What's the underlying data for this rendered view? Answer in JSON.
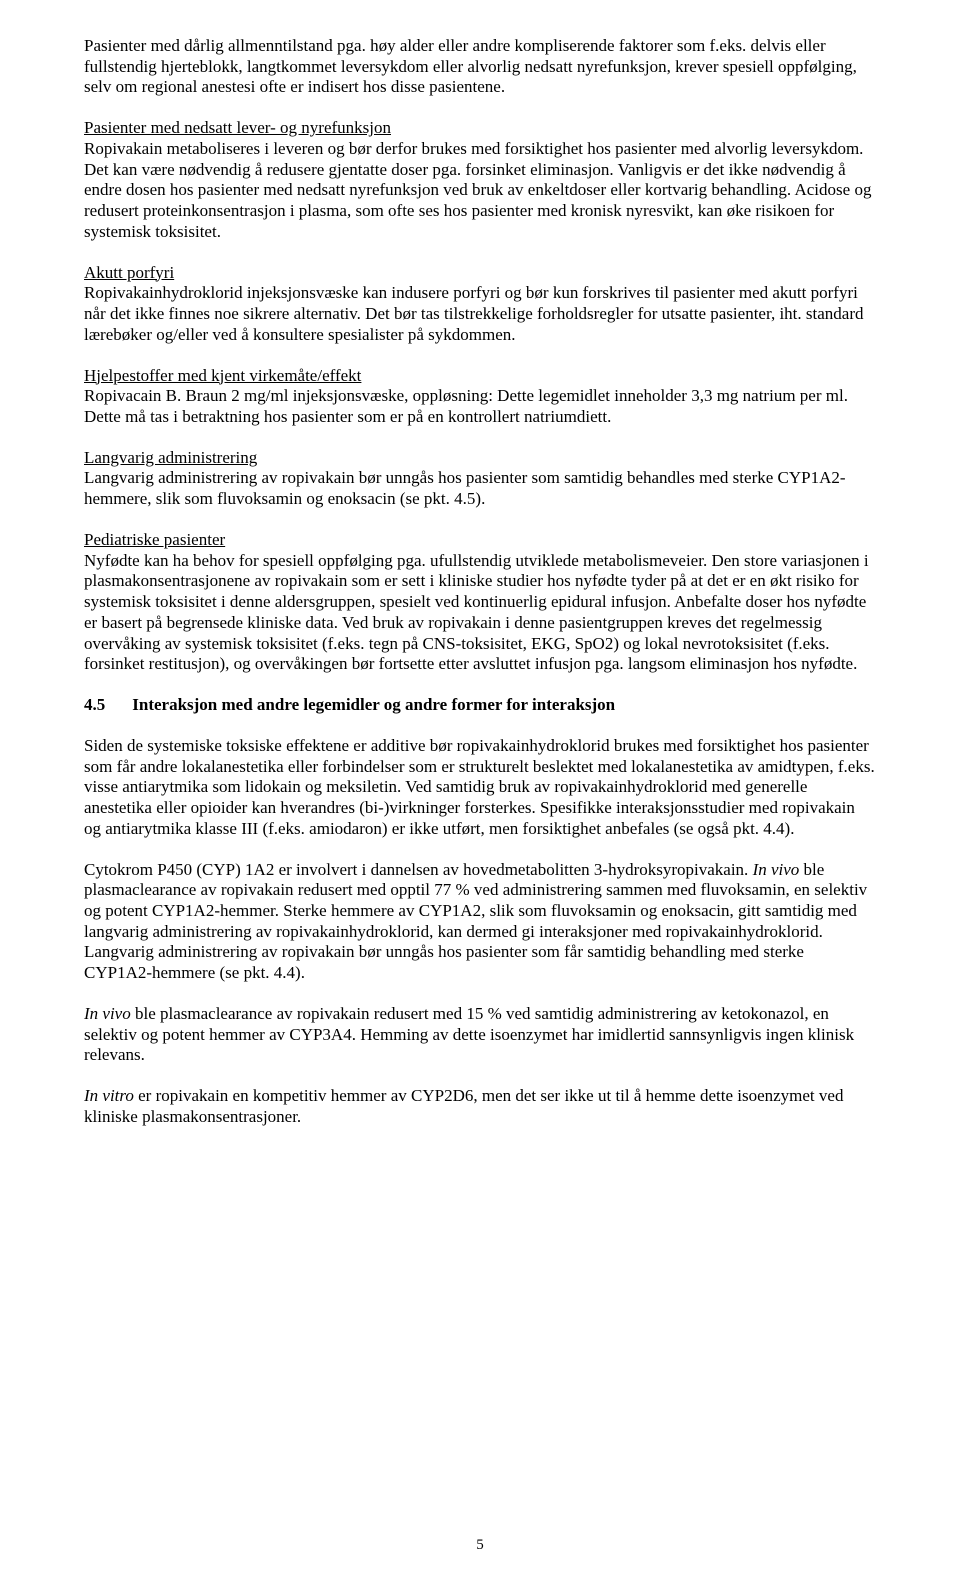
{
  "p1": "Pasienter med dårlig allmenntilstand pga. høy alder eller andre kompliserende faktorer som f.eks. delvis eller fullstendig hjerteblokk, langtkommet leversykdom eller alvorlig nedsatt nyrefunksjon, krever spesiell oppfølging, selv om regional anestesi ofte er indisert hos disse pasientene.",
  "h2": "Pasienter med nedsatt lever- og nyrefunksjon",
  "p2": "Ropivakain metaboliseres i leveren og bør derfor brukes med forsiktighet hos pasienter med alvorlig leversykdom. Det kan være nødvendig å redusere gjentatte doser pga. forsinket eliminasjon. Vanligvis er det ikke nødvendig å endre dosen hos pasienter med nedsatt nyrefunksjon ved bruk av enkeltdoser eller kortvarig behandling. Acidose og redusert proteinkonsentrasjon i plasma, som ofte ses hos pasienter med kronisk nyresvikt, kan øke risikoen for systemisk toksisitet.",
  "h3": "Akutt porfyri",
  "p3": "Ropivakainhydroklorid injeksjonsvæske kan indusere porfyri og bør kun forskrives til pasienter med akutt porfyri når det ikke finnes noe sikrere alternativ. Det bør tas tilstrekkelige forholdsregler for utsatte pasienter, iht. standard lærebøker og/eller ved å konsultere spesialister på sykdommen.",
  "h4": "Hjelpestoffer med kjent virkemåte/effekt",
  "p4a": "Ropivacain B. Braun 2 mg/ml injeksjonsvæske, oppløsning: Dette legemidlet inneholder 3,3 mg natrium per ml.",
  "p4b": "Dette må tas i betraktning hos pasienter som er på en kontrollert natriumdiett.",
  "h5": "Langvarig administrering",
  "p5": "Langvarig administrering av ropivakain bør unngås hos pasienter som samtidig behandles med sterke CYP1A2-hemmere, slik som fluvoksamin og enoksacin (se pkt. 4.5).",
  "h6": "Pediatriske pasienter",
  "p6": "Nyfødte kan ha behov for spesiell oppfølging pga. ufullstendig utviklede metabolismeveier. Den store variasjonen i plasmakonsentrasjonene av ropivakain som er sett i kliniske studier hos nyfødte tyder på at det er en økt risiko for systemisk toksisitet i denne aldersgruppen, spesielt ved kontinuerlig epidural infusjon. Anbefalte doser hos nyfødte er basert på begrensede kliniske data. Ved bruk av ropivakain i denne pasientgruppen kreves det regelmessig overvåking av systemisk toksisitet (f.eks. tegn på CNS-toksisitet, EKG, SpO2) og lokal nevrotoksisitet (f.eks. forsinket restitusjon), og overvåkingen bør fortsette etter avsluttet infusjon pga. langsom eliminasjon hos nyfødte.",
  "sec45_num": "4.5",
  "sec45_title": "Interaksjon med andre legemidler og andre former for interaksjon",
  "p7": "Siden de systemiske toksiske effektene er additive bør ropivakainhydroklorid brukes med forsiktighet hos pasienter som får andre lokalanestetika eller forbindelser som er strukturelt beslektet med lokalanestetika av amidtypen, f.eks. visse antiarytmika som lidokain og meksiletin. Ved samtidig bruk av ropivakainhydroklorid med generelle anestetika eller opioider kan hverandres (bi-)virkninger forsterkes. Spesifikke interaksjonsstudier med ropivakain og antiarytmika klasse III (f.eks. amiodaron) er ikke utført, men forsiktighet anbefales (se også pkt. 4.4).",
  "p8a": "Cytokrom P450 (CYP) 1A2 er involvert i dannelsen av hovedmetabolitten 3-hydroksyropivakain. ",
  "p8b_italic": "In vivo",
  "p8c": " ble plasmaclearance av ropivakain redusert med opptil 77 % ved administrering sammen med fluvoksamin, en selektiv og potent CYP1A2-hemmer. Sterke hemmere av CYP1A2, slik som fluvoksamin og enoksacin, gitt samtidig med langvarig administrering av ropivakainhydroklorid, kan dermed gi interaksjoner med ropivakainhydroklorid. Langvarig administrering av ropivakain bør unngås hos pasienter som får samtidig behandling med sterke CYP1A2-hemmere (se pkt. 4.4).",
  "p9a_italic": "In vivo",
  "p9b": " ble plasmaclearance av ropivakain redusert med 15 % ved samtidig administrering av ketokonazol, en selektiv og potent hemmer av CYP3A4. Hemming av dette isoenzymet har imidlertid sannsynligvis ingen klinisk relevans.",
  "p10a_italic": "In vitro",
  "p10b": " er ropivakain en kompetitiv hemmer av CYP2D6, men det ser ikke ut til å hemme dette isoenzymet ved kliniske plasmakonsentrasjoner.",
  "page_number": "5"
}
